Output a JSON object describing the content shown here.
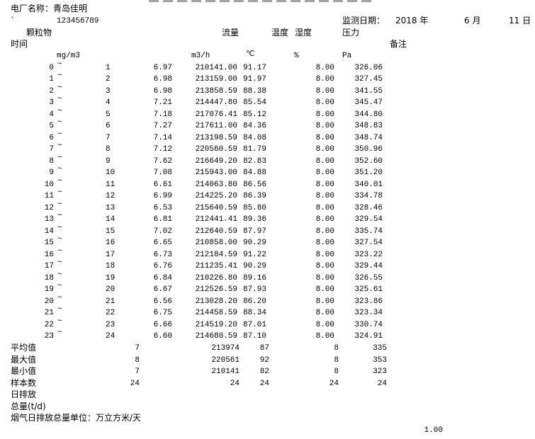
{
  "header": {
    "plant_label": "电厂名称：青岛佳明",
    "mark": "`",
    "code": "123456789",
    "date_label": "监测日期：",
    "year": "2018 年",
    "month": "6 月",
    "day": "11 日"
  },
  "columns": {
    "pm": "颗粒物",
    "flow": "流量",
    "temp": "温度",
    "humidity": "湿度",
    "pressure": "压力",
    "time": "时间",
    "remark": "备注",
    "pm_unit": "mg/m3",
    "flow_unit": "m3/h",
    "temp_unit": "℃",
    "humidity_unit": "%",
    "pressure_unit": "Pa"
  },
  "rows": [
    {
      "start": "0",
      "end": "1",
      "pm": "6.97",
      "flow": "210141.00",
      "temp": "91.17",
      "hum": "8.00",
      "press": "326.06"
    },
    {
      "start": "1",
      "end": "2",
      "pm": "6.98",
      "flow": "213159.00",
      "temp": "91.97",
      "hum": "8.00",
      "press": "327.45"
    },
    {
      "start": "2",
      "end": "3",
      "pm": "6.98",
      "flow": "213858.59",
      "temp": "88.38",
      "hum": "8.00",
      "press": "341.55"
    },
    {
      "start": "3",
      "end": "4",
      "pm": "7.21",
      "flow": "214447.80",
      "temp": "85.54",
      "hum": "8.00",
      "press": "345.47"
    },
    {
      "start": "4",
      "end": "5",
      "pm": "7.18",
      "flow": "217076.41",
      "temp": "85.12",
      "hum": "8.00",
      "press": "344.80"
    },
    {
      "start": "5",
      "end": "6",
      "pm": "7.27",
      "flow": "217611.00",
      "temp": "84.36",
      "hum": "8.00",
      "press": "348.83"
    },
    {
      "start": "6",
      "end": "7",
      "pm": "7.14",
      "flow": "213198.59",
      "temp": "84.08",
      "hum": "8.00",
      "press": "348.74"
    },
    {
      "start": "7",
      "end": "8",
      "pm": "7.12",
      "flow": "220560.59",
      "temp": "81.79",
      "hum": "8.00",
      "press": "350.96"
    },
    {
      "start": "8",
      "end": "9",
      "pm": "7.62",
      "flow": "216649.20",
      "temp": "82.83",
      "hum": "8.00",
      "press": "352.60"
    },
    {
      "start": "9",
      "end": "10",
      "pm": "7.08",
      "flow": "215943.00",
      "temp": "84.88",
      "hum": "8.00",
      "press": "351.20"
    },
    {
      "start": "10",
      "end": "11",
      "pm": "6.61",
      "flow": "214063.80",
      "temp": "86.56",
      "hum": "8.00",
      "press": "340.01"
    },
    {
      "start": "11",
      "end": "12",
      "pm": "6.99",
      "flow": "214225.20",
      "temp": "86.39",
      "hum": "8.00",
      "press": "334.78"
    },
    {
      "start": "12",
      "end": "13",
      "pm": "6.53",
      "flow": "215640.59",
      "temp": "85.80",
      "hum": "8.00",
      "press": "328.46"
    },
    {
      "start": "13",
      "end": "14",
      "pm": "6.81",
      "flow": "212441.41",
      "temp": "89.36",
      "hum": "8.00",
      "press": "329.54"
    },
    {
      "start": "14",
      "end": "15",
      "pm": "7.02",
      "flow": "212640.59",
      "temp": "87.97",
      "hum": "8.00",
      "press": "335.74"
    },
    {
      "start": "15",
      "end": "16",
      "pm": "6.65",
      "flow": "210858.00",
      "temp": "90.29",
      "hum": "8.00",
      "press": "327.54"
    },
    {
      "start": "16",
      "end": "17",
      "pm": "6.73",
      "flow": "212184.59",
      "temp": "91.22",
      "hum": "8.00",
      "press": "323.22"
    },
    {
      "start": "17",
      "end": "18",
      "pm": "6.76",
      "flow": "211235.41",
      "temp": "90.29",
      "hum": "8.00",
      "press": "329.44"
    },
    {
      "start": "18",
      "end": "19",
      "pm": "6.84",
      "flow": "210226.80",
      "temp": "89.16",
      "hum": "8.00",
      "press": "326.55"
    },
    {
      "start": "19",
      "end": "20",
      "pm": "6.67",
      "flow": "212526.59",
      "temp": "87.93",
      "hum": "8.00",
      "press": "325.61"
    },
    {
      "start": "20",
      "end": "21",
      "pm": "6.56",
      "flow": "213028.20",
      "temp": "86.20",
      "hum": "8.00",
      "press": "323.86"
    },
    {
      "start": "21",
      "end": "22",
      "pm": "6.75",
      "flow": "214458.59",
      "temp": "88.34",
      "hum": "8.00",
      "press": "323.34"
    },
    {
      "start": "22",
      "end": "23",
      "pm": "6.66",
      "flow": "214519.20",
      "temp": "87.01",
      "hum": "8.00",
      "press": "330.74"
    },
    {
      "start": "23",
      "end": "24",
      "pm": "6.60",
      "flow": "214680.59",
      "temp": "87.10",
      "hum": "8.00",
      "press": "324.91"
    }
  ],
  "tilde": "~",
  "summary": [
    {
      "label": "平均值",
      "pm": "7",
      "flow": "213974",
      "temp": "87",
      "hum": "8",
      "press": "335"
    },
    {
      "label": "最大值",
      "pm": "8",
      "flow": "220561",
      "temp": "92",
      "hum": "8",
      "press": "353"
    },
    {
      "label": "最小值",
      "pm": "7",
      "flow": "210141",
      "temp": "82",
      "hum": "8",
      "press": "323"
    },
    {
      "label": "样本数",
      "pm": "24",
      "flow": "24",
      "temp": "24",
      "hum": "24",
      "press": "24"
    }
  ],
  "footer": {
    "daily_emission": "日排放",
    "total": "总量(t/d)",
    "unit_note": "烟气日排放总量单位：万立方米/天",
    "value": "1.00"
  }
}
